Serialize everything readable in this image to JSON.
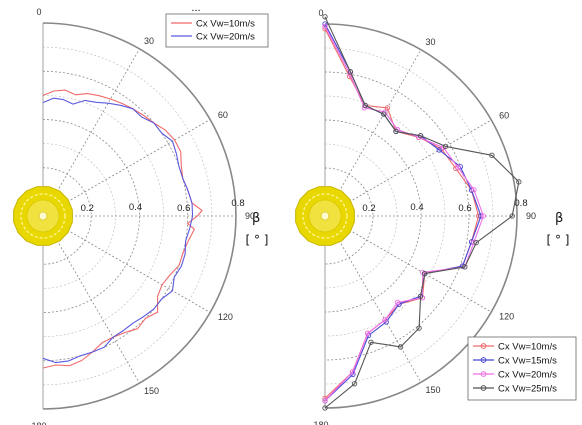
{
  "top_marker": "...",
  "colors": {
    "cx10": "#f06a6a",
    "cx15": "#4848d8",
    "cx20": "#ee6ee8",
    "cx25": "#555555",
    "left20": "#5a5ae0",
    "grid": "#8a8a8a",
    "outer": "#888888",
    "hub": "#e8d800"
  },
  "icon": "yellow-gear-hub-icon",
  "chart_data": [
    {
      "type": "line",
      "polar": true,
      "angular_ticks": [
        "0",
        "30",
        "60",
        "90",
        "120",
        "150",
        "180"
      ],
      "radial_ticks": [
        "0.2",
        "0.4",
        "0.6",
        "0.8"
      ],
      "rlim": [
        0,
        0.8
      ],
      "theta_range_deg": [
        0,
        180
      ],
      "xlabel": "β",
      "unit": "[ ° ]",
      "grid": true,
      "legend_position": "top-right",
      "series": [
        {
          "name": "Cx Vw=10m/s",
          "color": "#f06a6a",
          "theta": [
            0,
            5,
            10,
            15,
            20,
            25,
            30,
            35,
            40,
            45,
            50,
            55,
            60,
            65,
            70,
            75,
            80,
            85,
            88,
            90,
            93,
            95,
            100,
            105,
            110,
            115,
            120,
            125,
            130,
            135,
            140,
            145,
            150,
            155,
            160,
            165,
            170,
            175,
            180
          ],
          "r": [
            0.5,
            0.52,
            0.53,
            0.52,
            0.54,
            0.55,
            0.56,
            0.57,
            0.58,
            0.59,
            0.6,
            0.62,
            0.63,
            0.63,
            0.61,
            0.6,
            0.61,
            0.62,
            0.66,
            0.64,
            0.6,
            0.63,
            0.61,
            0.6,
            0.6,
            0.58,
            0.57,
            0.58,
            0.62,
            0.6,
            0.61,
            0.59,
            0.58,
            0.58,
            0.6,
            0.62,
            0.63,
            0.62,
            0.63
          ]
        },
        {
          "name": "Cx Vw=20m/s",
          "color": "#5a5ae0",
          "theta": [
            0,
            5,
            10,
            15,
            20,
            25,
            30,
            35,
            40,
            45,
            50,
            55,
            60,
            65,
            70,
            75,
            80,
            85,
            90,
            95,
            100,
            105,
            110,
            115,
            120,
            125,
            130,
            135,
            140,
            145,
            150,
            155,
            160,
            165,
            170,
            175,
            180
          ],
          "r": [
            0.47,
            0.49,
            0.49,
            0.48,
            0.51,
            0.52,
            0.54,
            0.56,
            0.58,
            0.58,
            0.6,
            0.6,
            0.62,
            0.61,
            0.6,
            0.6,
            0.61,
            0.62,
            0.62,
            0.61,
            0.6,
            0.61,
            0.61,
            0.6,
            0.62,
            0.6,
            0.6,
            0.59,
            0.58,
            0.58,
            0.58,
            0.6,
            0.6,
            0.6,
            0.61,
            0.61,
            0.59
          ]
        }
      ]
    },
    {
      "type": "line",
      "polar": true,
      "markers": true,
      "angular_ticks": [
        "0",
        "30",
        "60",
        "90",
        "120",
        "150",
        "180"
      ],
      "radial_ticks": [
        "0.2",
        "0.4",
        "0.6",
        "0.8"
      ],
      "rlim": [
        0,
        0.8
      ],
      "theta_range_deg": [
        0,
        180
      ],
      "xlabel": "β",
      "unit": "[ ° ]",
      "grid": true,
      "legend_position": "bottom-right",
      "series": [
        {
          "name": "Cx Vw=10m/s",
          "color": "#f06a6a",
          "theta": [
            0,
            10,
            20,
            30,
            40,
            50,
            60,
            70,
            80,
            90,
            100,
            110,
            120,
            130,
            140,
            150,
            160,
            170,
            180
          ],
          "r": [
            0.78,
            0.59,
            0.49,
            0.52,
            0.46,
            0.51,
            0.56,
            0.58,
            0.62,
            0.64,
            0.62,
            0.61,
            0.48,
            0.53,
            0.48,
            0.5,
            0.52,
            0.66,
            0.76
          ]
        },
        {
          "name": "Cx Vw=15m/s",
          "color": "#4848d8",
          "theta": [
            0,
            10,
            20,
            30,
            40,
            50,
            60,
            70,
            80,
            90,
            100,
            110,
            120,
            130,
            140,
            150,
            160,
            170,
            180
          ],
          "r": [
            0.8,
            0.61,
            0.49,
            0.49,
            0.46,
            0.52,
            0.55,
            0.6,
            0.62,
            0.65,
            0.62,
            0.61,
            0.48,
            0.52,
            0.48,
            0.51,
            0.53,
            0.67,
            0.77
          ]
        },
        {
          "name": "Cx Vw=20m/s",
          "color": "#ee6ee8",
          "theta": [
            0,
            10,
            20,
            30,
            40,
            50,
            60,
            70,
            80,
            90,
            100,
            110,
            120,
            130,
            140,
            150,
            160,
            170,
            180
          ],
          "r": [
            0.79,
            0.6,
            0.48,
            0.5,
            0.47,
            0.51,
            0.57,
            0.59,
            0.63,
            0.66,
            0.63,
            0.62,
            0.47,
            0.53,
            0.47,
            0.5,
            0.52,
            0.66,
            0.77
          ]
        },
        {
          "name": "Cx Vw=25m/s",
          "color": "#555555",
          "theta": [
            0,
            10,
            20,
            30,
            40,
            50,
            60,
            70,
            80,
            90,
            100,
            110,
            120,
            130,
            140,
            150,
            160,
            170,
            180
          ],
          "r": [
            0.83,
            0.61,
            0.49,
            0.49,
            0.46,
            0.52,
            0.58,
            0.74,
            0.82,
            0.78,
            0.64,
            0.62,
            0.48,
            0.52,
            0.61,
            0.63,
            0.56,
            0.71,
            0.8
          ]
        }
      ]
    }
  ]
}
